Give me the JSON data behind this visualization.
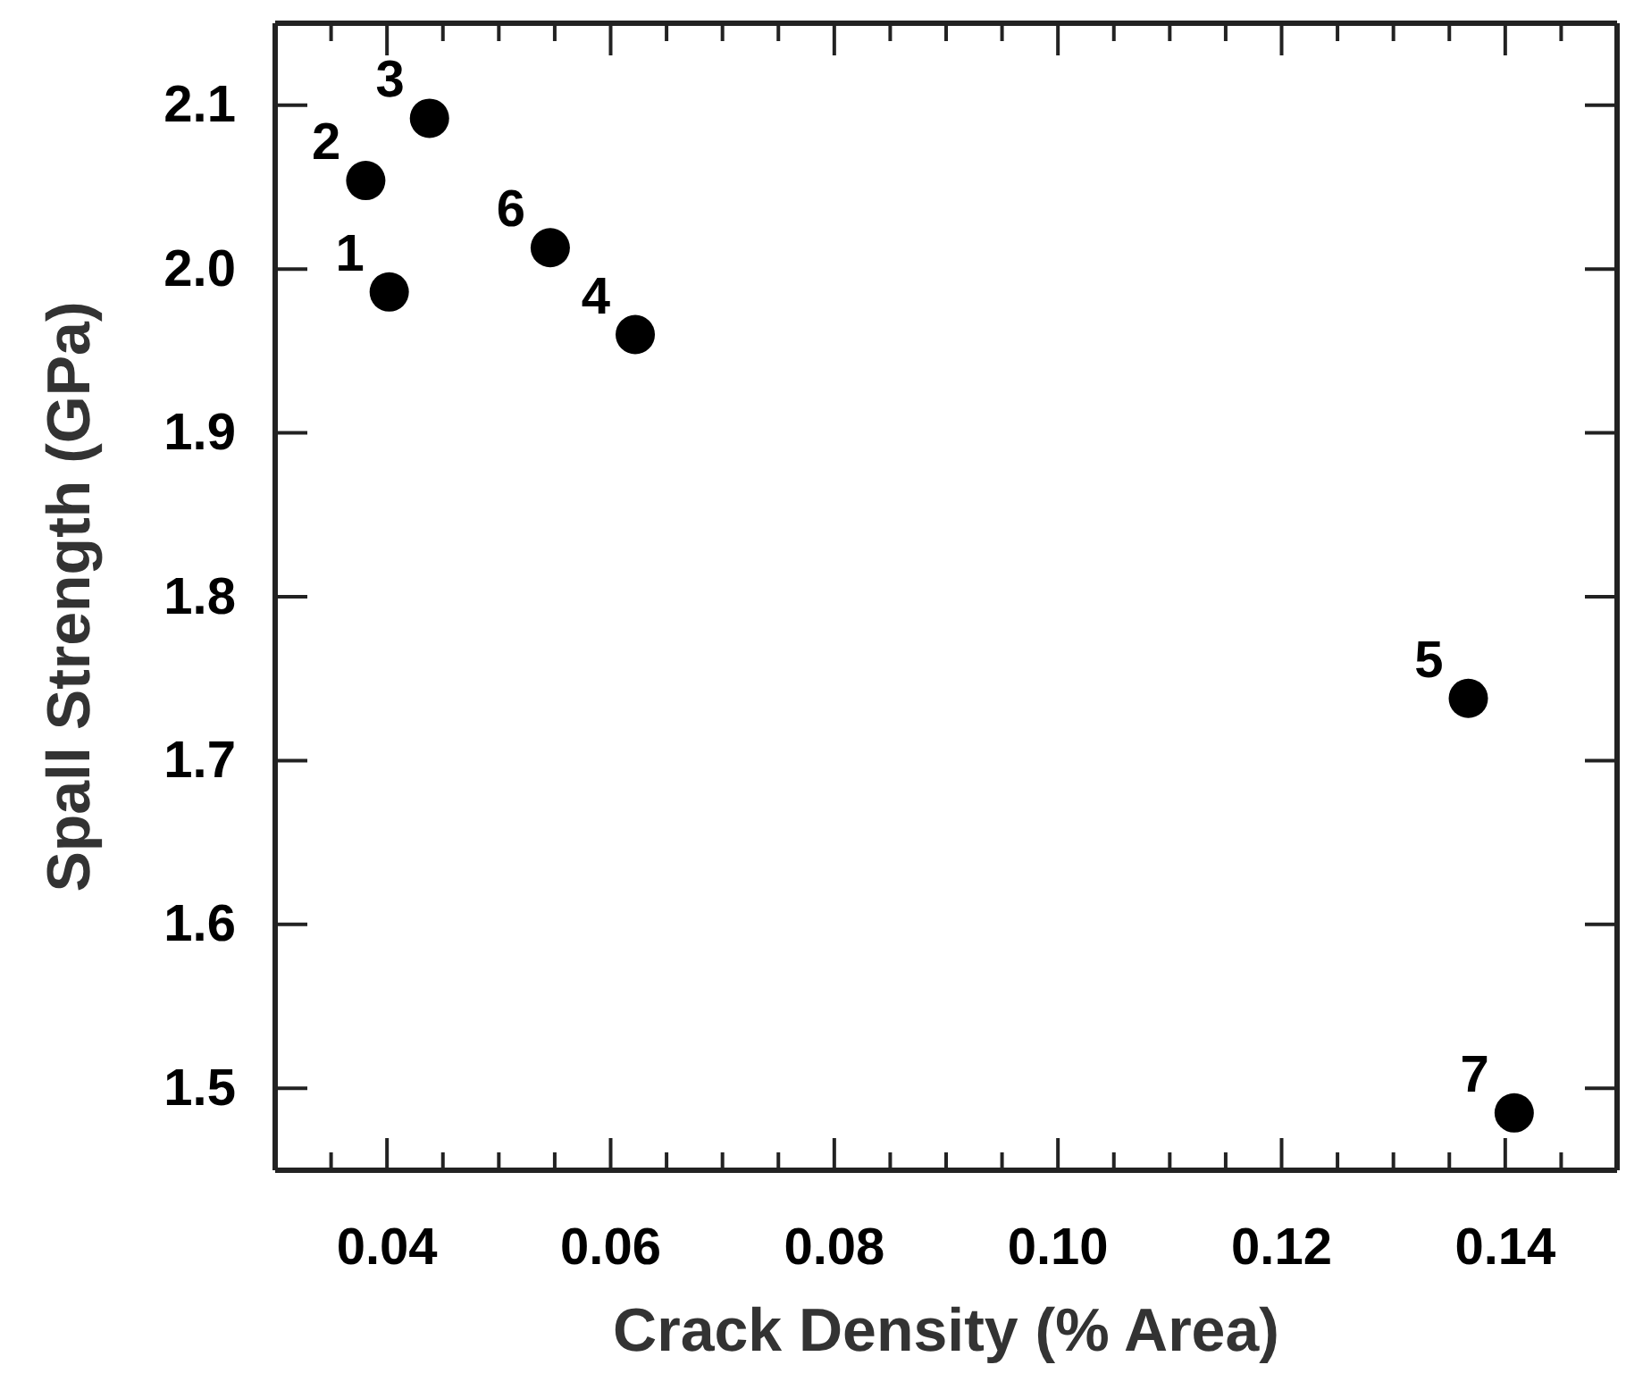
{
  "chart_data": {
    "type": "scatter",
    "xlabel": "Crack Density (% Area)",
    "ylabel": "Spall Strength (GPa)",
    "x": [
      0.0402,
      0.0381,
      0.0438,
      0.0622,
      0.1367,
      0.0546,
      0.1408
    ],
    "series": [
      {
        "color": "#000000",
        "values": [
          1.986,
          2.054,
          2.092,
          1.96,
          1.738,
          2.013,
          1.485
        ]
      }
    ],
    "marker": "circle",
    "grid": false,
    "xlim": [
      0.03,
      0.15
    ],
    "xticks": [
      {
        "value": 0.035,
        "label": null
      },
      0.04,
      {
        "value": 0.045,
        "label": null
      },
      {
        "value": 0.05,
        "label": null
      },
      {
        "value": 0.055,
        "label": null
      },
      0.06,
      {
        "value": 0.065,
        "label": null
      },
      {
        "value": 0.07,
        "label": null
      },
      {
        "value": 0.075,
        "label": null
      },
      0.08,
      {
        "value": 0.085,
        "label": null
      },
      {
        "value": 0.09,
        "label": null
      },
      {
        "value": 0.095,
        "label": null
      },
      {
        "value": 0.1,
        "label": "0.10"
      },
      {
        "value": 0.105,
        "label": null
      },
      {
        "value": 0.11,
        "label": null
      },
      {
        "value": 0.115,
        "label": null
      },
      0.12,
      {
        "value": 0.125,
        "label": null
      },
      {
        "value": 0.13,
        "label": null
      },
      {
        "value": 0.135,
        "label": null
      },
      0.14,
      {
        "value": 0.145,
        "label": null
      }
    ],
    "ylim": [
      1.45,
      2.15
    ],
    "yticks": [
      1.5,
      1.6,
      1.7,
      1.8,
      1.9,
      {
        "value": 2.0,
        "label": "2.0"
      },
      2.1
    ],
    "annotations": [
      {
        "text": "1",
        "x": 0.0402,
        "y": 1.986
      },
      {
        "text": "2",
        "x": 0.0381,
        "y": 2.054
      },
      {
        "text": "3",
        "x": 0.0438,
        "y": 2.092
      },
      {
        "text": "4",
        "x": 0.0622,
        "y": 1.96
      },
      {
        "text": "5",
        "x": 0.1367,
        "y": 1.738
      },
      {
        "text": "6",
        "x": 0.0546,
        "y": 2.013
      },
      {
        "text": "7",
        "x": 0.1408,
        "y": 1.485
      }
    ]
  }
}
